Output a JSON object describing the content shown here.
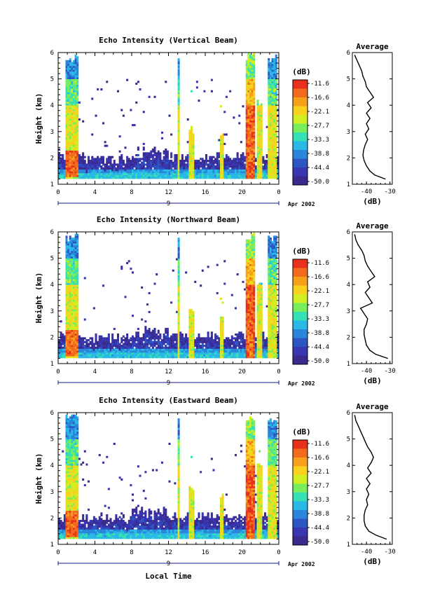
{
  "figure": {
    "xlabel": "Local Time",
    "date_label": "Apr 2002",
    "day_label": "9",
    "colorbar_title": "(dB)"
  },
  "chart_data": [
    {
      "type": "heatmap",
      "title": "Echo Intensity (Vertical Beam)",
      "ylabel": "Height (km)",
      "xlim": [
        0,
        24
      ],
      "xticks": [
        "0",
        "4",
        "8",
        "12",
        "16",
        "20",
        "0"
      ],
      "ylim": [
        1,
        6
      ],
      "yticks": [
        "1",
        "2",
        "3",
        "4",
        "5",
        "6"
      ],
      "colorbar": {
        "label": "(dB)",
        "ticks": [
          "-11.6",
          "-16.6",
          "-22.1",
          "-27.7",
          "-33.3",
          "-38.8",
          "-44.4",
          "-50.0"
        ],
        "colors": [
          "#e8301c",
          "#f26a1c",
          "#f8a01c",
          "#f8d21c",
          "#d0ee22",
          "#78ee5c",
          "#34e0b4",
          "#2ab8e6",
          "#2a86da",
          "#2c56c4",
          "#3836b0",
          "#3a2a8e"
        ]
      },
      "average_profile": {
        "title": "Average",
        "xlabel": "(dB)",
        "xticks": [
          "-40",
          "-30"
        ],
        "xlim": [
          -46,
          -29
        ],
        "heights": [
          1.2,
          1.35,
          1.5,
          1.7,
          1.9,
          2.1,
          2.3,
          2.5,
          2.7,
          2.9,
          3.1,
          3.3,
          3.5,
          3.7,
          3.9,
          4.1,
          4.3,
          4.5,
          4.7,
          4.9,
          5.1,
          5.3,
          5.5,
          5.7,
          5.9
        ],
        "values": [
          -32,
          -36.5,
          -38.5,
          -40,
          -41,
          -41.5,
          -41.2,
          -40.5,
          -39.5,
          -40.5,
          -39,
          -40,
          -38.5,
          -40,
          -38,
          -39.5,
          -37,
          -38.5,
          -40,
          -40.5,
          -41.5,
          -42,
          -43,
          -44,
          -45
        ]
      }
    },
    {
      "type": "heatmap",
      "title": "Echo Intensity (Northward Beam)",
      "ylabel": "Height (km)",
      "xlim": [
        0,
        24
      ],
      "xticks": [
        "0",
        "4",
        "8",
        "12",
        "16",
        "20",
        "0"
      ],
      "ylim": [
        1,
        6
      ],
      "yticks": [
        "1",
        "2",
        "3",
        "4",
        "5",
        "6"
      ],
      "colorbar": {
        "label": "(dB)",
        "ticks": [
          "-11.6",
          "-16.6",
          "-22.1",
          "-27.7",
          "-33.3",
          "-38.8",
          "-44.4",
          "-50.0"
        ],
        "colors": [
          "#e8301c",
          "#f26a1c",
          "#f8a01c",
          "#f8d21c",
          "#d0ee22",
          "#78ee5c",
          "#34e0b4",
          "#2ab8e6",
          "#2a86da",
          "#2c56c4",
          "#3836b0",
          "#3a2a8e"
        ]
      },
      "average_profile": {
        "title": "Average",
        "xlabel": "(dB)",
        "xticks": [
          "-40",
          "-30"
        ],
        "xlim": [
          -46,
          -29
        ],
        "heights": [
          1.2,
          1.35,
          1.5,
          1.7,
          1.9,
          2.1,
          2.3,
          2.5,
          2.7,
          2.9,
          3.1,
          3.3,
          3.5,
          3.7,
          3.9,
          4.1,
          4.3,
          4.5,
          4.7,
          4.9,
          5.1,
          5.3,
          5.5,
          5.7,
          5.9
        ],
        "values": [
          -31,
          -36,
          -38.5,
          -40,
          -40.5,
          -41,
          -41,
          -40,
          -39.5,
          -41,
          -42.5,
          -37.5,
          -39,
          -40.5,
          -38.5,
          -39.5,
          -36.5,
          -38,
          -39.5,
          -40.5,
          -41,
          -42,
          -43.5,
          -44.5,
          -45
        ]
      }
    },
    {
      "type": "heatmap",
      "title": "Echo Intensity (Eastward Beam)",
      "ylabel": "Height (km)",
      "xlim": [
        0,
        24
      ],
      "xticks": [
        "0",
        "4",
        "8",
        "12",
        "16",
        "20",
        "0"
      ],
      "ylim": [
        1,
        6
      ],
      "yticks": [
        "1",
        "2",
        "3",
        "4",
        "5",
        "6"
      ],
      "colorbar": {
        "label": "(dB)",
        "ticks": [
          "-11.6",
          "-16.6",
          "-22.1",
          "-27.7",
          "-33.3",
          "-38.8",
          "-44.4",
          "-50.0"
        ],
        "colors": [
          "#e8301c",
          "#f26a1c",
          "#f8a01c",
          "#f8d21c",
          "#d0ee22",
          "#78ee5c",
          "#34e0b4",
          "#2ab8e6",
          "#2a86da",
          "#2c56c4",
          "#3836b0",
          "#3a2a8e"
        ]
      },
      "average_profile": {
        "title": "Average",
        "xlabel": "(dB)",
        "xticks": [
          "-40",
          "-30"
        ],
        "xlim": [
          -46,
          -29
        ],
        "heights": [
          1.2,
          1.35,
          1.5,
          1.7,
          1.9,
          2.1,
          2.3,
          2.5,
          2.7,
          2.9,
          3.1,
          3.3,
          3.5,
          3.7,
          3.9,
          4.1,
          4.3,
          4.5,
          4.7,
          4.9,
          5.1,
          5.3,
          5.5,
          5.7,
          5.9
        ],
        "values": [
          -31.5,
          -36,
          -39,
          -40.5,
          -41,
          -41,
          -40.5,
          -39.5,
          -40,
          -39,
          -40,
          -38.5,
          -40,
          -38,
          -39.5,
          -38,
          -37,
          -38,
          -39.5,
          -40.5,
          -41.5,
          -42.5,
          -43.5,
          -44.5,
          -45
        ]
      }
    }
  ]
}
